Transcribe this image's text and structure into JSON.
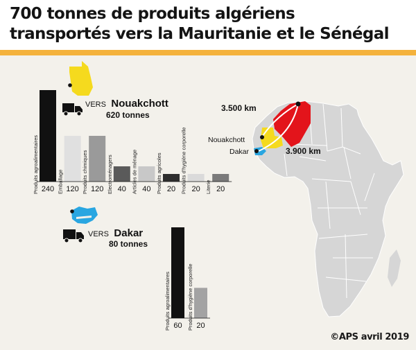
{
  "title": {
    "line1": "700 tonnes de produits algériens",
    "line2": "transportés vers la Mauritanie et le Sénégal"
  },
  "credit": "©APS avril 2019",
  "colors": {
    "accent": "#f4b23c",
    "mauritania": "#f5da1e",
    "algeria": "#e3141b",
    "senegal": "#29a6e1",
    "africa": "#d6d6d6",
    "bar_dark": "#111111",
    "bar_light": "#d3d3d3",
    "bar_mid": "#9a9a9a",
    "bar_darkgray": "#5a5a5a"
  },
  "map": {
    "label_nouakchott": "Nouakchott",
    "label_dakar": "Dakar",
    "distance_nouakchott": "3.500 km",
    "distance_dakar": "3.900 km"
  },
  "chart_data": [
    {
      "type": "bar",
      "destination_prefix": "VERS",
      "destination": "Nouakchott",
      "total": "620 tonnes",
      "categories": [
        "Produits agroalimentaires",
        "Emballage",
        "Produits chimiques",
        "Electroménagers",
        "Articles de ménage",
        "Produits agricoles",
        "Produits d'hygiène corporelle",
        "Literie"
      ],
      "values": [
        240,
        120,
        120,
        40,
        40,
        20,
        20,
        20
      ],
      "value_labels": [
        "240",
        "120",
        "120",
        "40",
        "40",
        "20",
        "20",
        "20"
      ],
      "bar_colors": [
        "#111111",
        "#e0e0e0",
        "#9a9a9a",
        "#5a5a5a",
        "#c8c8c8",
        "#2e2e2e",
        "#dadada",
        "#7a7a7a"
      ],
      "ylim": [
        0,
        240
      ]
    },
    {
      "type": "bar",
      "destination_prefix": "VERS",
      "destination": "Dakar",
      "total": "80 tonnes",
      "categories": [
        "Produits agroalimentaires",
        "Produits d'hygiène corporelle"
      ],
      "values": [
        60,
        20
      ],
      "value_labels": [
        "60",
        "20"
      ],
      "bar_colors": [
        "#111111",
        "#a3a3a3"
      ],
      "ylim": [
        0,
        60
      ]
    }
  ]
}
